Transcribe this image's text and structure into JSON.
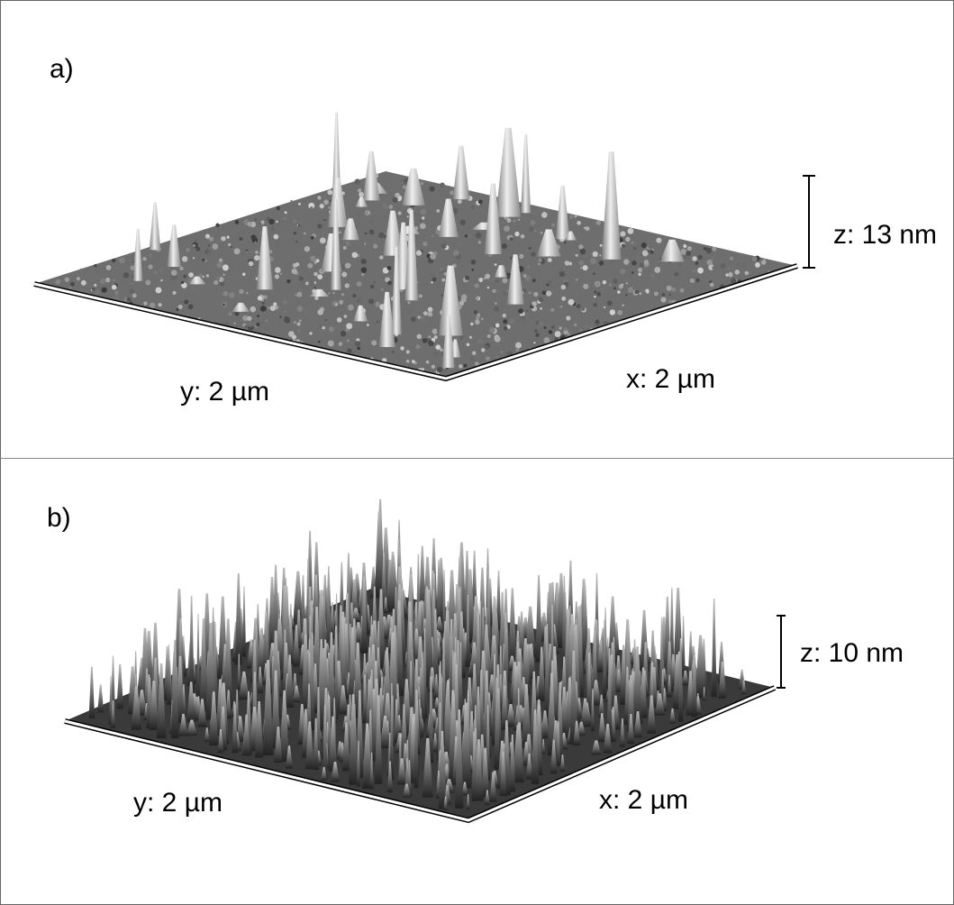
{
  "panels": [
    {
      "label": "a)",
      "y_label": "y: 2 µm",
      "x_label": "x: 2 µm",
      "z_label": "z: 13 nm"
    },
    {
      "label": "b)",
      "y_label": "y: 2 µm",
      "x_label": "x: 2 µm",
      "z_label": "z: 10 nm"
    }
  ]
}
